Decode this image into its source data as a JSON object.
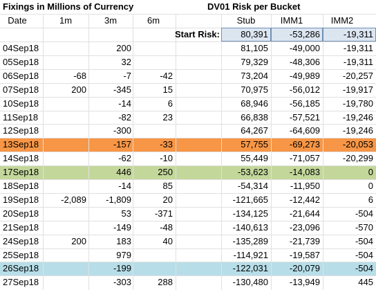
{
  "title": "Fixings in Millions of Currency",
  "risk_title": "DV01 Risk per Bucket",
  "headers": [
    "Date",
    "1m",
    "3m",
    "6m",
    "Stub",
    "IMM1",
    "IMM2"
  ],
  "start_risk": {
    "label": "Start Risk:",
    "values": [
      "80,391",
      "-53,286",
      "-19,311"
    ],
    "color": "#dce6f1"
  },
  "rows": [
    {
      "cells": [
        "04Sep18",
        null,
        "200",
        null,
        "81,105",
        "-49,000",
        "-19,311"
      ]
    },
    {
      "cells": [
        "05Sep18",
        null,
        "32",
        null,
        "79,329",
        "-48,306",
        "-19,311"
      ]
    },
    {
      "cells": [
        "06Sep18",
        "-68",
        "-7",
        "-42",
        "73,204",
        "-49,989",
        "-20,257"
      ]
    },
    {
      "cells": [
        "07Sep18",
        "200",
        "-345",
        "15",
        "70,975",
        "-56,012",
        "-19,917"
      ]
    },
    {
      "cells": [
        "10Sep18",
        null,
        "-14",
        "6",
        "68,946",
        "-56,185",
        "-19,780"
      ]
    },
    {
      "cells": [
        "11Sep18",
        null,
        "-82",
        "23",
        "66,838",
        "-57,521",
        "-19,246"
      ]
    },
    {
      "cells": [
        "12Sep18",
        null,
        "-300",
        null,
        "64,267",
        "-64,609",
        "-19,246"
      ]
    },
    {
      "cells": [
        "13Sep18",
        null,
        "-157",
        "-33",
        "57,755",
        "-69,273",
        "-20,053"
      ],
      "color": "#f79646"
    },
    {
      "cells": [
        "14Sep18",
        null,
        "-62",
        "-10",
        "55,449",
        "-71,057",
        "-20,299"
      ]
    },
    {
      "cells": [
        "17Sep18",
        null,
        "446",
        "250",
        "-53,623",
        "-14,083",
        "0"
      ],
      "color": "#c4d79b"
    },
    {
      "cells": [
        "18Sep18",
        null,
        "-14",
        "85",
        "-54,314",
        "-11,950",
        "0"
      ]
    },
    {
      "cells": [
        "19Sep18",
        "-2,089",
        "-1,809",
        "20",
        "-121,665",
        "-12,442",
        "6"
      ]
    },
    {
      "cells": [
        "20Sep18",
        null,
        "53",
        "-371",
        "-134,125",
        "-21,644",
        "-504"
      ]
    },
    {
      "cells": [
        "21Sep18",
        null,
        "-149",
        "-48",
        "-140,613",
        "-23,096",
        "-570"
      ]
    },
    {
      "cells": [
        "24Sep18",
        "200",
        "183",
        "40",
        "-135,289",
        "-21,739",
        "-504"
      ]
    },
    {
      "cells": [
        "25Sep18",
        null,
        "979",
        null,
        "-114,921",
        "-19,587",
        "-504"
      ]
    },
    {
      "cells": [
        "26Sep18",
        null,
        "-199",
        null,
        "-122,031",
        "-20,079",
        "-504"
      ],
      "color": "#b7dee8"
    },
    {
      "cells": [
        "27Sep18",
        null,
        "-303",
        "288",
        "-130,480",
        "-13,949",
        "445"
      ]
    }
  ]
}
